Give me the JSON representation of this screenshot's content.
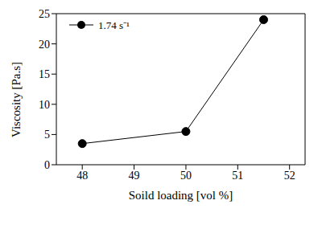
{
  "chart_data": {
    "type": "line",
    "x_label": "Soild loading [vol %]",
    "y_label": "Viscosity [Pa.s]",
    "x": [
      48,
      50,
      51.5
    ],
    "series": [
      {
        "name": "1.74 s⁻¹",
        "color": "#000000",
        "marker": "circle",
        "values": [
          3.5,
          5.5,
          24
        ]
      }
    ],
    "xlim": [
      47.5,
      52.3
    ],
    "xticks": [
      48,
      49,
      50,
      51,
      52
    ],
    "ylim": [
      0,
      25
    ],
    "yticks": [
      0,
      5,
      10,
      15,
      20,
      25
    ],
    "legend": "upper left"
  }
}
